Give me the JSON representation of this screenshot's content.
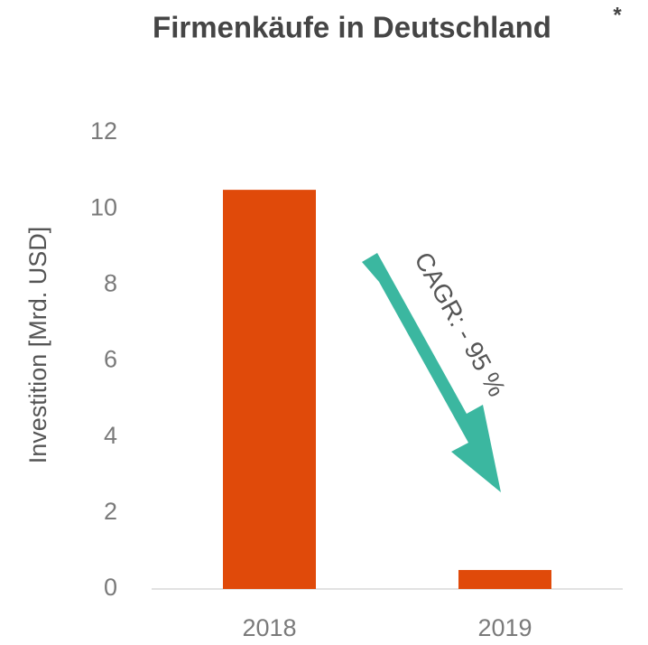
{
  "chart_data": {
    "type": "bar",
    "title": "Firmenkäufe in Deutschland",
    "title_marker": "*",
    "y_label": "Investition [Mrd. USD]",
    "annotation": "CAGR: - 95 %",
    "categories": [
      "2018",
      "2019"
    ],
    "values": [
      10.5,
      0.5
    ],
    "color": "#e04a0a",
    "ylim": [
      0,
      12
    ],
    "yticks": [
      0,
      2,
      4,
      6,
      8,
      10,
      12
    ],
    "grid": false
  }
}
